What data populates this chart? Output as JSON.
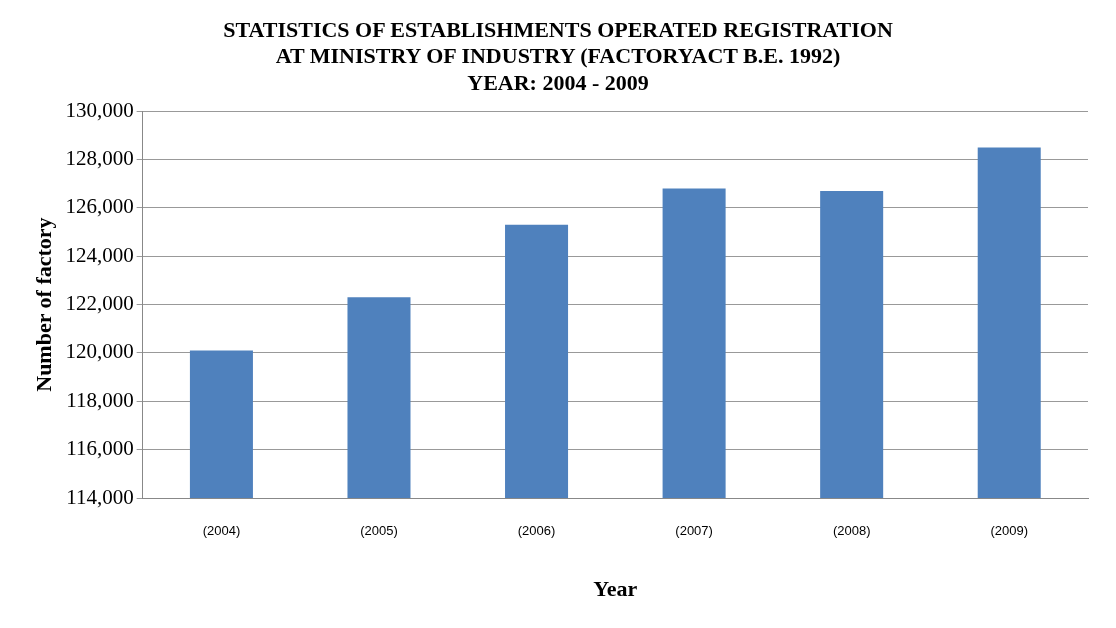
{
  "chart_data": {
    "type": "bar",
    "title": "STATISTICS OF ESTABLISHMENTS OPERATED REGISTRATION\nAT MINISTRY OF INDUSTRY (FACTORYACT B.E. 1992)\nYEAR: 2004 - 2009",
    "xlabel": "Year",
    "ylabel": "Number of factory",
    "categories": [
      "(2004)",
      "(2005)",
      "(2006)",
      "(2007)",
      "(2008)",
      "(2009)"
    ],
    "values": [
      120100,
      122300,
      125300,
      126800,
      126700,
      128500
    ],
    "color": "#4f81bd",
    "ylim": [
      114000,
      130000
    ],
    "yticks": [
      {
        "value": 114000,
        "label": "114,000"
      },
      {
        "value": 116000,
        "label": "116,000"
      },
      {
        "value": 118000,
        "label": "118,000"
      },
      {
        "value": 120000,
        "label": "120,000"
      },
      {
        "value": 122000,
        "label": "122,000"
      },
      {
        "value": 124000,
        "label": "124,000"
      },
      {
        "value": 126000,
        "label": "126,000"
      },
      {
        "value": 128000,
        "label": "128,000"
      },
      {
        "value": 130000,
        "label": "130,000"
      }
    ],
    "grid": "y",
    "legend": false
  }
}
